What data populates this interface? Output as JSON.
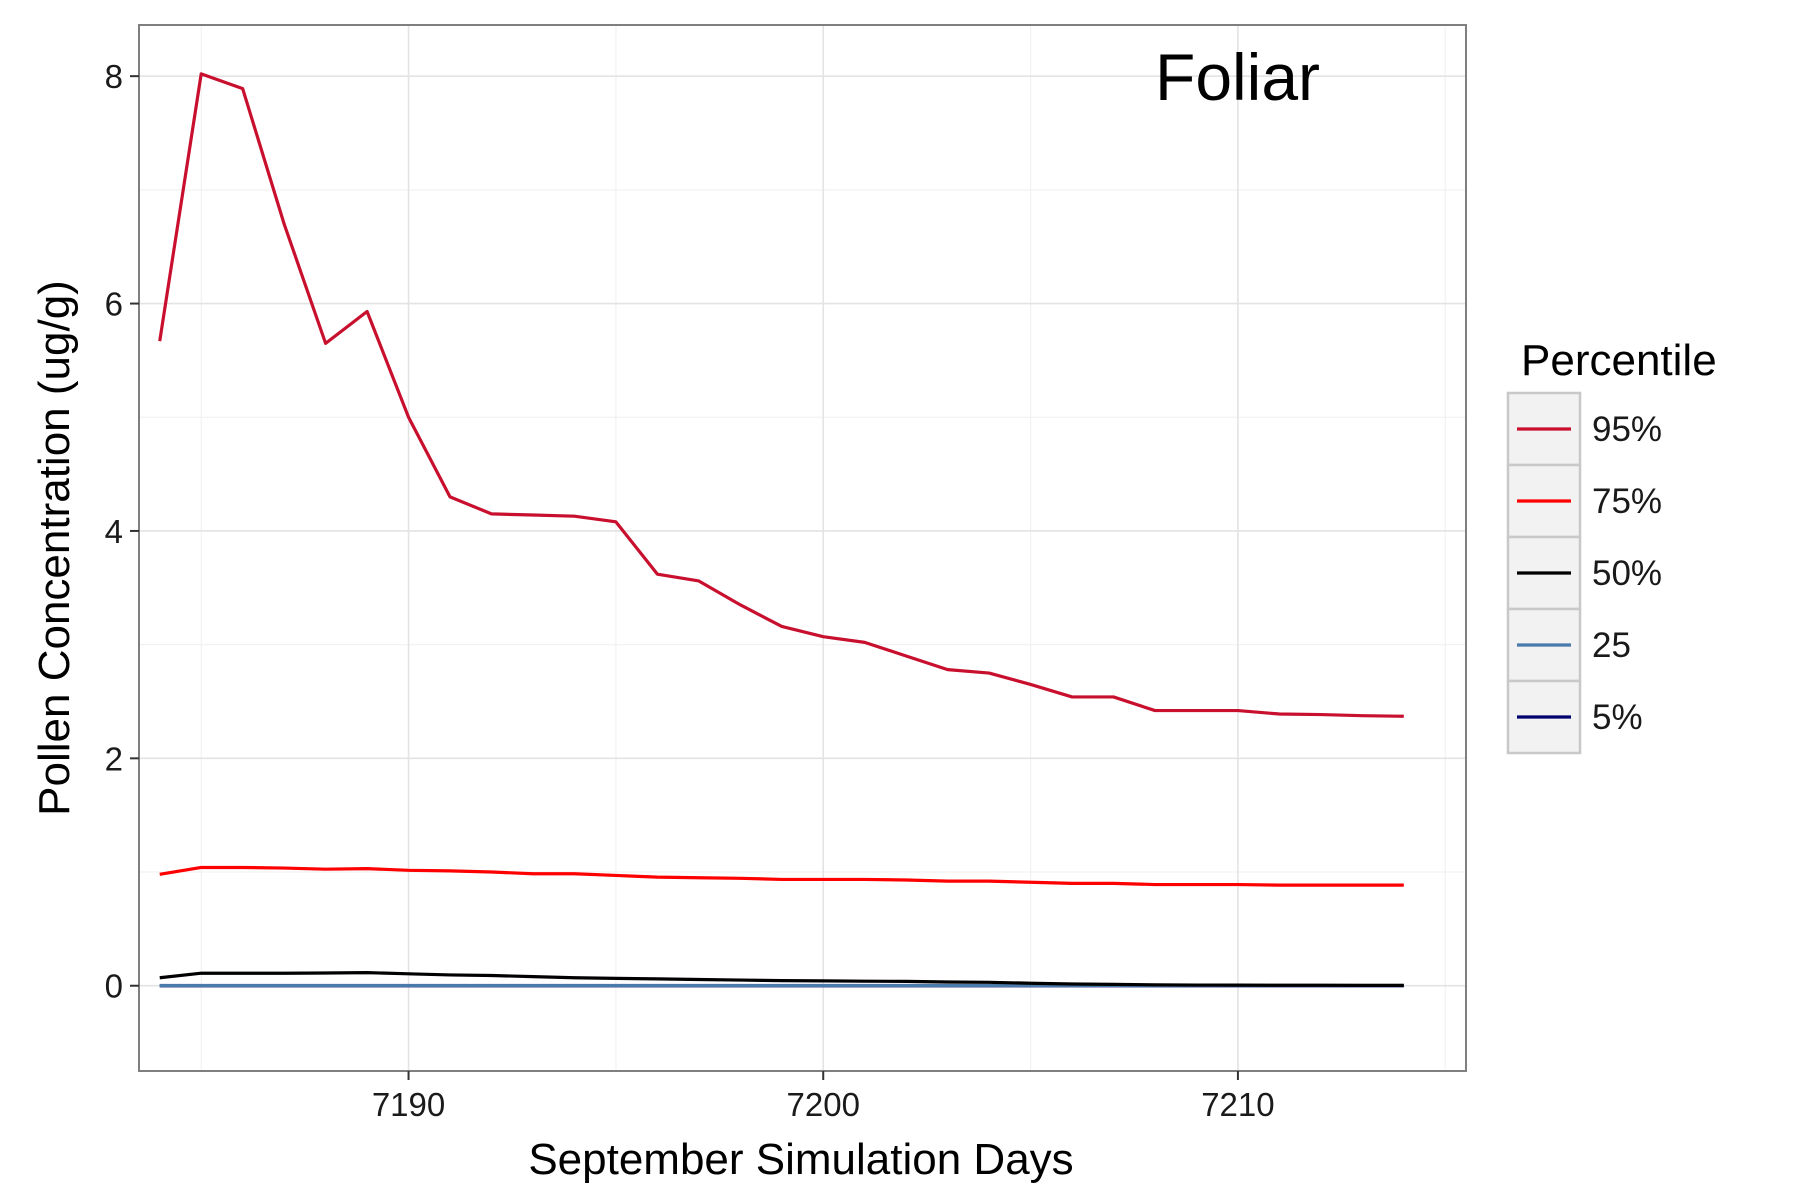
{
  "chart_data": {
    "type": "line",
    "annotation": "Foliar",
    "xlabel": "September Simulation Days",
    "ylabel": "Pollen Concentration (ug/g)",
    "xlim": [
      7183.5,
      7215.5
    ],
    "ylim": [
      -0.75,
      8.45
    ],
    "x_ticks": [
      7190,
      7200,
      7210
    ],
    "y_ticks": [
      0,
      2,
      4,
      6,
      8
    ],
    "x_minor": [
      7185,
      7195,
      7205,
      7215
    ],
    "y_minor": [
      1,
      3,
      5,
      7
    ],
    "grid": true,
    "legend_title": "Percentile",
    "legend_position": "right",
    "x": [
      7184,
      7185,
      7186,
      7187,
      7188,
      7189,
      7190,
      7191,
      7192,
      7193,
      7194,
      7195,
      7196,
      7197,
      7198,
      7199,
      7200,
      7201,
      7202,
      7203,
      7204,
      7205,
      7206,
      7207,
      7208,
      7209,
      7210,
      7211,
      7212,
      7213,
      7214
    ],
    "series": [
      {
        "name": "95%",
        "color": "#c8102e",
        "values": [
          5.67,
          8.02,
          7.89,
          6.7,
          5.65,
          5.93,
          5.0,
          4.3,
          4.15,
          4.14,
          4.13,
          4.08,
          3.62,
          3.56,
          3.35,
          3.16,
          3.07,
          3.02,
          2.9,
          2.78,
          2.75,
          2.65,
          2.54,
          2.54,
          2.42,
          2.42,
          2.42,
          2.39,
          2.385,
          2.375,
          2.37
        ]
      },
      {
        "name": "75%",
        "color": "#ff0000",
        "values": [
          0.98,
          1.04,
          1.04,
          1.035,
          1.025,
          1.03,
          1.015,
          1.01,
          1.0,
          0.985,
          0.985,
          0.97,
          0.955,
          0.95,
          0.945,
          0.935,
          0.935,
          0.935,
          0.93,
          0.92,
          0.92,
          0.91,
          0.9,
          0.9,
          0.89,
          0.89,
          0.89,
          0.885,
          0.885,
          0.885,
          0.885
        ]
      },
      {
        "name": "50%",
        "color": "#000000",
        "values": [
          0.07,
          0.11,
          0.11,
          0.11,
          0.112,
          0.115,
          0.105,
          0.095,
          0.09,
          0.08,
          0.07,
          0.065,
          0.06,
          0.055,
          0.05,
          0.045,
          0.043,
          0.04,
          0.038,
          0.033,
          0.03,
          0.022,
          0.015,
          0.012,
          0.008,
          0.006,
          0.005,
          0.004,
          0.004,
          0.003,
          0.003
        ]
      },
      {
        "name": "25",
        "color": "#4a7aaa",
        "values": [
          0.002,
          0.002,
          0.002,
          0.002,
          0.002,
          0.002,
          0.002,
          0.002,
          0.002,
          0.002,
          0.002,
          0.002,
          0.002,
          0.002,
          0.002,
          0.002,
          0.002,
          0.002,
          0.002,
          0.002,
          0.002,
          0.002,
          0.002,
          0.002,
          0.002,
          0.002,
          0.002,
          0.002,
          0.002,
          0.002,
          0.002
        ]
      },
      {
        "name": "5%",
        "color": "#00006e",
        "values": [
          0,
          0,
          0,
          0,
          0,
          0,
          0,
          0,
          0,
          0,
          0,
          0,
          0,
          0,
          0,
          0,
          0,
          0,
          0,
          0,
          0,
          0,
          0,
          0,
          0,
          0,
          0,
          0,
          0,
          0,
          0
        ]
      }
    ]
  }
}
